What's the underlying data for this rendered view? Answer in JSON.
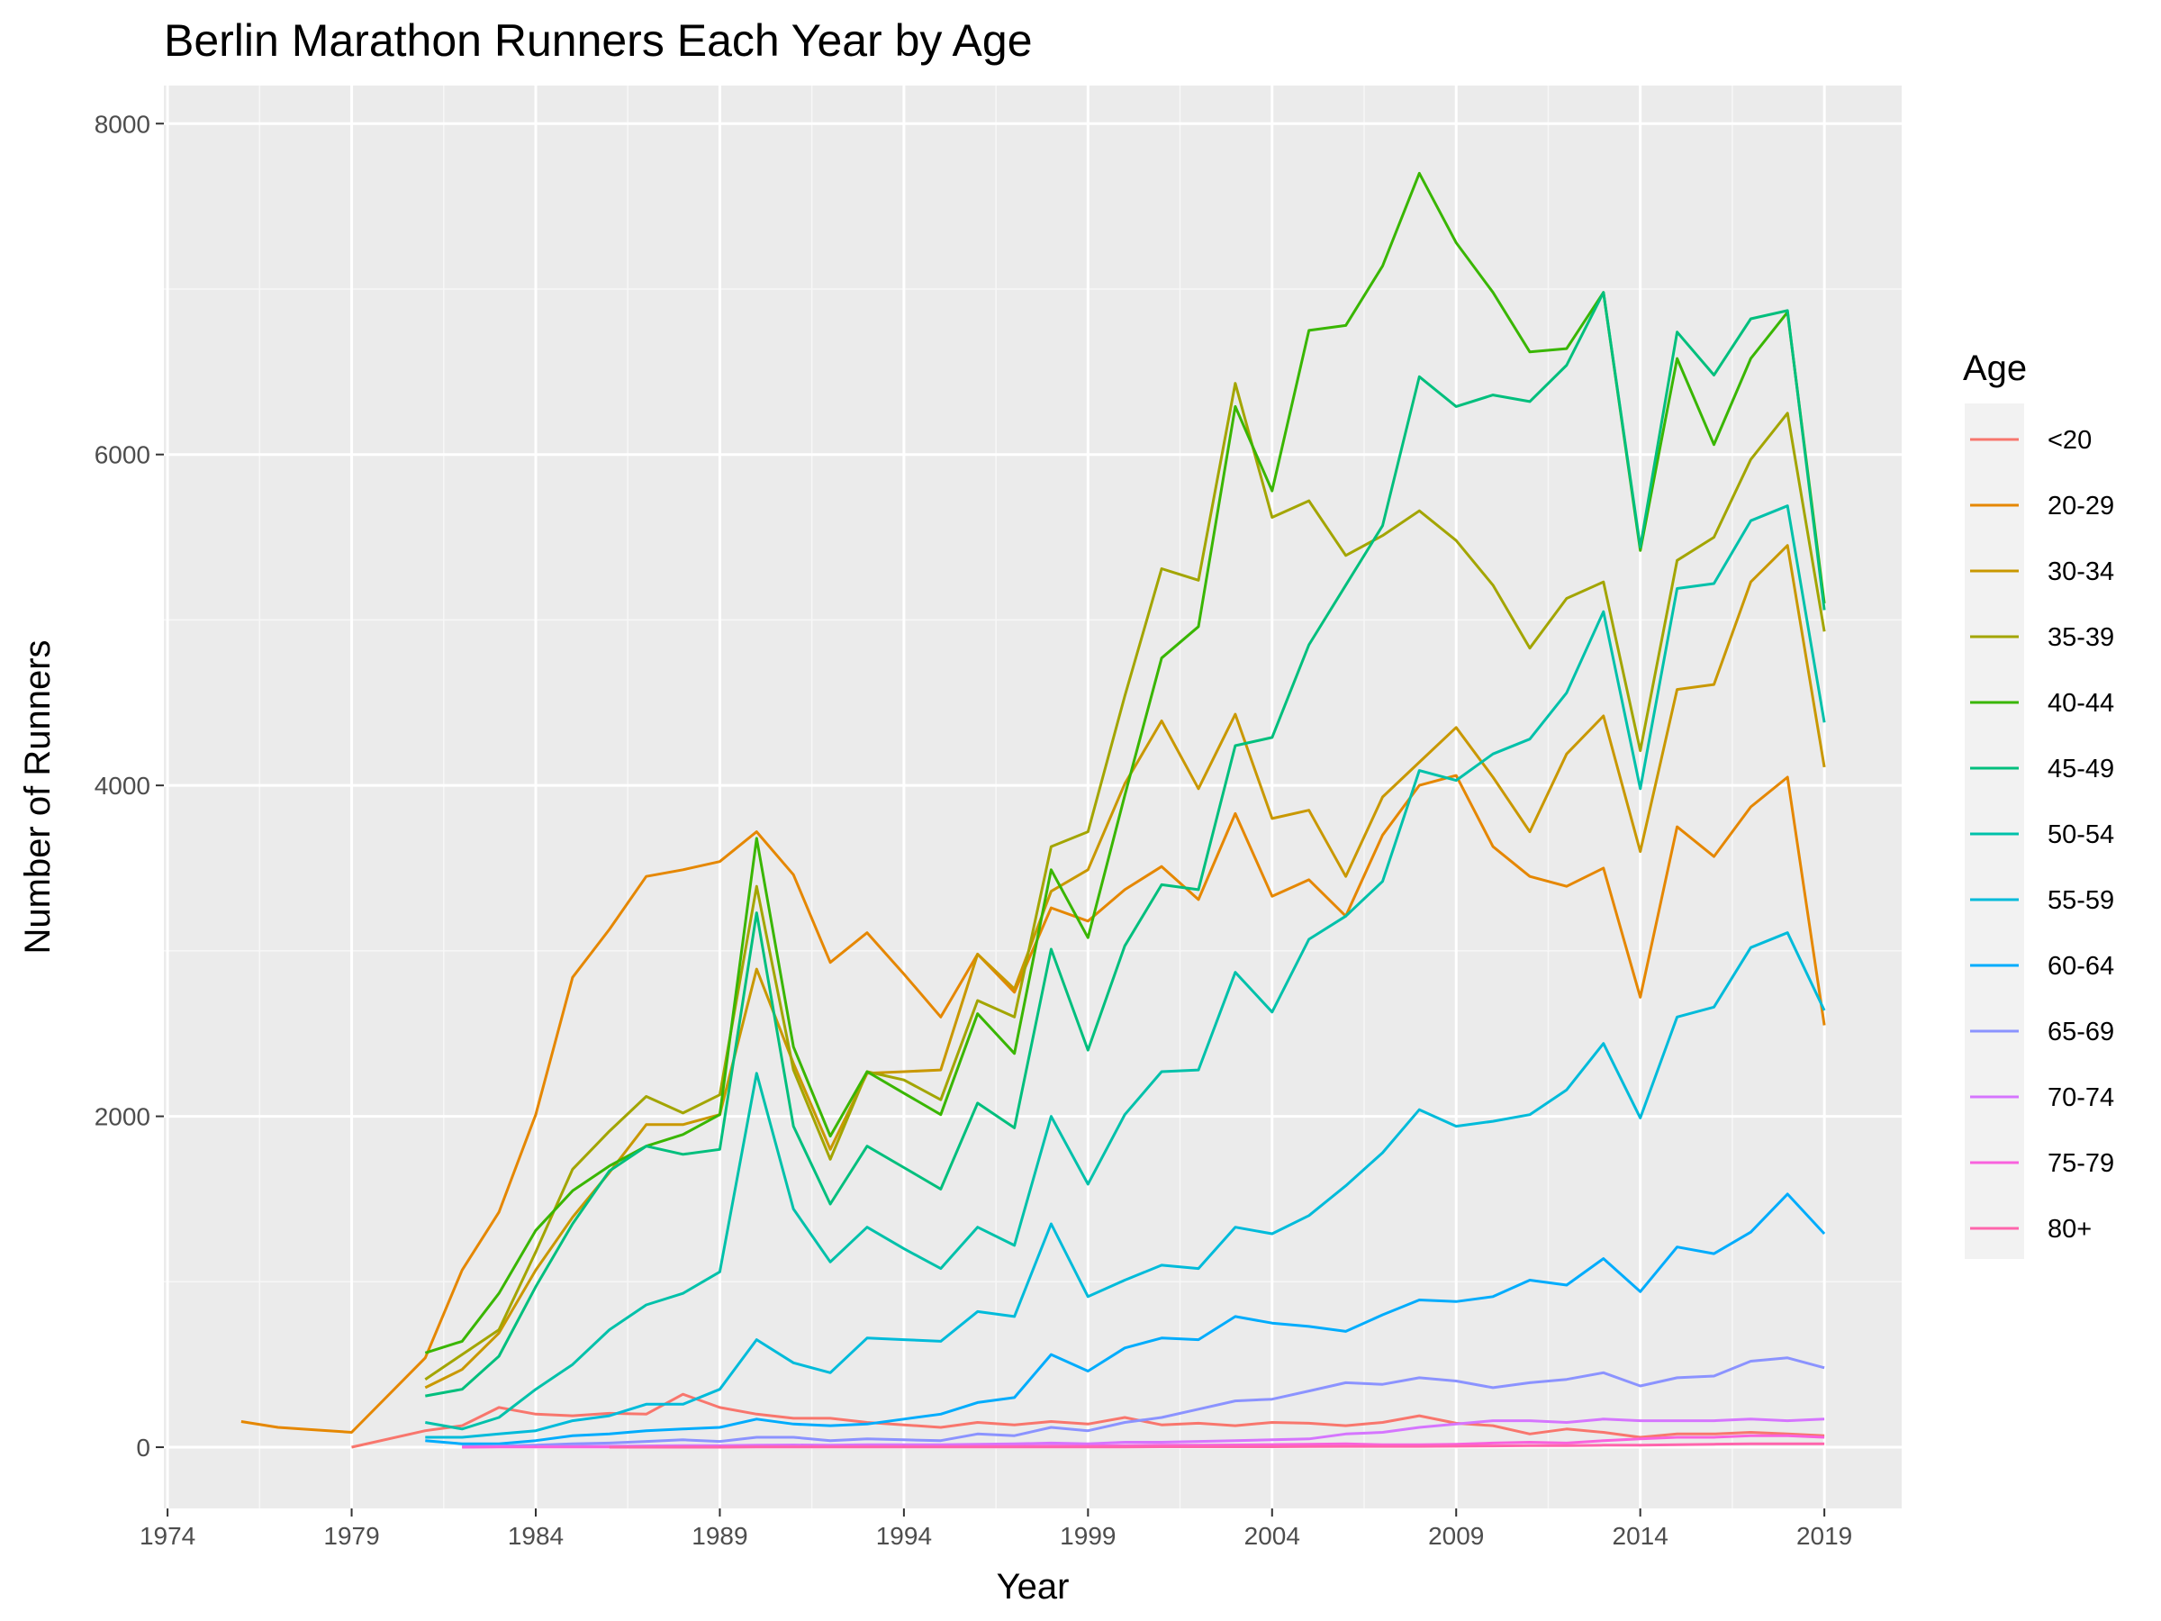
{
  "chart_data": {
    "type": "line",
    "title": "Berlin Marathon Runners Each Year by Age",
    "xlabel": "Year",
    "ylabel": "Number of Runners",
    "xlim": [
      1973.9,
      2021.1
    ],
    "ylim": [
      -370,
      8230
    ],
    "xticks": [
      1974,
      1979,
      1984,
      1989,
      1994,
      1999,
      2004,
      2009,
      2014,
      2019
    ],
    "yticks": [
      0,
      2000,
      4000,
      6000,
      8000
    ],
    "grid": true,
    "legend": {
      "title": "Age",
      "position": "right"
    },
    "series": [
      {
        "name": "<20",
        "color": "#F8766D",
        "x": [
          1979,
          1981,
          1982,
          1983,
          1984,
          1985,
          1986,
          1987,
          1988,
          1989,
          1990,
          1991,
          1992,
          1993,
          1994,
          1995,
          1996,
          1997,
          1998,
          1999,
          2000,
          2001,
          2002,
          2003,
          2004,
          2005,
          2006,
          2007,
          2008,
          2009,
          2010,
          2011,
          2012,
          2013,
          2014,
          2015,
          2016,
          2017,
          2018,
          2019
        ],
        "y": [
          0,
          100,
          130,
          240,
          200,
          190,
          205,
          200,
          320,
          240,
          200,
          175,
          175,
          150,
          135,
          120,
          150,
          135,
          155,
          140,
          180,
          135,
          145,
          130,
          150,
          145,
          130,
          150,
          190,
          145,
          130,
          80,
          110,
          90,
          60,
          80,
          80,
          90,
          80,
          70
        ]
      },
      {
        "name": "20-29",
        "color": "#E58700",
        "x": [
          1976,
          1977,
          1978,
          1979,
          1981,
          1982,
          1983,
          1984,
          1985,
          1986,
          1987,
          1988,
          1989,
          1990,
          1991,
          1992,
          1993,
          1994,
          1995,
          1996,
          1997,
          1998,
          1999,
          2000,
          2001,
          2002,
          2003,
          2004,
          2005,
          2006,
          2007,
          2008,
          2009,
          2010,
          2011,
          2012,
          2013,
          2014,
          2015,
          2016,
          2017,
          2018,
          2019
        ],
        "y": [
          155,
          120,
          105,
          90,
          540,
          1070,
          1420,
          2010,
          2840,
          3130,
          3450,
          3490,
          3540,
          3720,
          3460,
          2930,
          3110,
          2860,
          2600,
          2980,
          2750,
          3260,
          3180,
          3370,
          3510,
          3310,
          3830,
          3330,
          3430,
          3210,
          3700,
          4000,
          4060,
          3630,
          3450,
          3390,
          3500,
          2720,
          3750,
          3570,
          3870,
          4050,
          2550
        ]
      },
      {
        "name": "30-34",
        "color": "#C99800",
        "x": [
          1981,
          1982,
          1983,
          1984,
          1985,
          1986,
          1987,
          1988,
          1989,
          1990,
          1991,
          1992,
          1993,
          1994,
          1995,
          1996,
          1997,
          1998,
          1999,
          2000,
          2001,
          2002,
          2003,
          2004,
          2005,
          2006,
          2007,
          2008,
          2009,
          2010,
          2011,
          2012,
          2013,
          2014,
          2015,
          2016,
          2017,
          2018,
          2019
        ],
        "y": [
          360,
          470,
          690,
          1070,
          1390,
          1660,
          1950,
          1950,
          2010,
          2890,
          2320,
          1800,
          2260,
          2270,
          2280,
          2980,
          2770,
          3360,
          3490,
          4010,
          4390,
          3980,
          4430,
          3800,
          3850,
          3450,
          3930,
          4140,
          4350,
          4050,
          3720,
          4190,
          4420,
          3600,
          4580,
          4610,
          5230,
          5450,
          4110
        ]
      },
      {
        "name": "35-39",
        "color": "#A3A500",
        "x": [
          1981,
          1982,
          1983,
          1984,
          1985,
          1986,
          1987,
          1988,
          1989,
          1990,
          1991,
          1992,
          1993,
          1994,
          1995,
          1996,
          1997,
          1998,
          1999,
          2000,
          2001,
          2002,
          2003,
          2004,
          2005,
          2006,
          2007,
          2008,
          2009,
          2010,
          2011,
          2012,
          2013,
          2014,
          2015,
          2016,
          2017,
          2018,
          2019
        ],
        "y": [
          410,
          560,
          710,
          1180,
          1680,
          1910,
          2120,
          2020,
          2130,
          3390,
          2280,
          1740,
          2270,
          2220,
          2100,
          2700,
          2600,
          3630,
          3720,
          4540,
          5310,
          5240,
          6430,
          5620,
          5720,
          5390,
          5510,
          5660,
          5480,
          5210,
          4830,
          5130,
          5230,
          4210,
          5360,
          5500,
          5970,
          6250,
          4930
        ]
      },
      {
        "name": "40-44",
        "color": "#39B600",
        "x": [
          1981,
          1982,
          1983,
          1984,
          1985,
          1986,
          1987,
          1988,
          1989,
          1990,
          1991,
          1992,
          1993,
          1994,
          1995,
          1996,
          1997,
          1998,
          1999,
          2000,
          2001,
          2002,
          2003,
          2004,
          2005,
          2006,
          2007,
          2008,
          2009,
          2010,
          2011,
          2012,
          2013,
          2014,
          2015,
          2016,
          2017,
          2018,
          2019
        ],
        "y": [
          570,
          640,
          930,
          1310,
          1550,
          1700,
          1820,
          1890,
          2010,
          3680,
          2420,
          1880,
          2270,
          2140,
          2010,
          2620,
          2380,
          3490,
          3080,
          3940,
          4770,
          4960,
          6290,
          5780,
          6750,
          6780,
          7140,
          7700,
          7280,
          6980,
          6620,
          6640,
          6980,
          5420,
          6580,
          6060,
          6580,
          6860,
          5100
        ]
      },
      {
        "name": "45-49",
        "color": "#00BF7D",
        "x": [
          1981,
          1982,
          1983,
          1984,
          1985,
          1986,
          1987,
          1988,
          1989,
          1990,
          1991,
          1992,
          1993,
          1994,
          1995,
          1996,
          1997,
          1998,
          1999,
          2000,
          2001,
          2002,
          2003,
          2004,
          2005,
          2006,
          2007,
          2008,
          2009,
          2010,
          2011,
          2012,
          2013,
          2014,
          2015,
          2016,
          2017,
          2018,
          2019
        ],
        "y": [
          310,
          350,
          550,
          970,
          1350,
          1670,
          1820,
          1770,
          1800,
          3230,
          1940,
          1470,
          1820,
          1690,
          1560,
          2080,
          1930,
          3010,
          2400,
          3030,
          3400,
          3370,
          4240,
          4290,
          4850,
          5210,
          5570,
          6470,
          6290,
          6360,
          6320,
          6540,
          6980,
          5440,
          6740,
          6480,
          6820,
          6870,
          5060
        ]
      },
      {
        "name": "50-54",
        "color": "#00C1AA",
        "x": [
          1981,
          1982,
          1983,
          1984,
          1985,
          1986,
          1987,
          1988,
          1989,
          1990,
          1991,
          1992,
          1993,
          1994,
          1995,
          1996,
          1997,
          1998,
          1999,
          2000,
          2001,
          2002,
          2003,
          2004,
          2005,
          2006,
          2007,
          2008,
          2009,
          2010,
          2011,
          2012,
          2013,
          2014,
          2015,
          2016,
          2017,
          2018,
          2019
        ],
        "y": [
          150,
          110,
          180,
          350,
          500,
          710,
          860,
          930,
          1060,
          2260,
          1440,
          1120,
          1330,
          1200,
          1080,
          1330,
          1220,
          2000,
          1590,
          2010,
          2270,
          2280,
          2870,
          2630,
          3070,
          3210,
          3420,
          4090,
          4030,
          4190,
          4280,
          4560,
          5050,
          3980,
          5190,
          5220,
          5600,
          5690,
          4380
        ]
      },
      {
        "name": "55-59",
        "color": "#00BBDA",
        "x": [
          1981,
          1982,
          1983,
          1984,
          1985,
          1986,
          1987,
          1988,
          1989,
          1990,
          1991,
          1992,
          1993,
          1994,
          1995,
          1996,
          1997,
          1998,
          1999,
          2000,
          2001,
          2002,
          2003,
          2004,
          2005,
          2006,
          2007,
          2008,
          2009,
          2010,
          2011,
          2012,
          2013,
          2014,
          2015,
          2016,
          2017,
          2018,
          2019
        ],
        "y": [
          60,
          60,
          80,
          100,
          160,
          190,
          260,
          260,
          350,
          650,
          510,
          450,
          660,
          650,
          640,
          820,
          790,
          1350,
          910,
          1010,
          1100,
          1080,
          1330,
          1290,
          1400,
          1580,
          1780,
          2040,
          1940,
          1970,
          2010,
          2160,
          2440,
          1990,
          2600,
          2660,
          3020,
          3110,
          2640
        ]
      },
      {
        "name": "60-64",
        "color": "#00ACFC",
        "x": [
          1981,
          1982,
          1983,
          1984,
          1985,
          1986,
          1987,
          1988,
          1989,
          1990,
          1991,
          1992,
          1993,
          1994,
          1995,
          1996,
          1997,
          1998,
          1999,
          2000,
          2001,
          2002,
          2003,
          2004,
          2005,
          2006,
          2007,
          2008,
          2009,
          2010,
          2011,
          2012,
          2013,
          2014,
          2015,
          2016,
          2017,
          2018,
          2019
        ],
        "y": [
          40,
          20,
          20,
          40,
          70,
          80,
          100,
          110,
          120,
          170,
          140,
          130,
          140,
          170,
          200,
          270,
          300,
          560,
          460,
          600,
          660,
          650,
          790,
          750,
          730,
          700,
          800,
          890,
          880,
          910,
          1010,
          980,
          1140,
          940,
          1210,
          1170,
          1300,
          1530,
          1290
        ]
      },
      {
        "name": "65-69",
        "color": "#8B93FF",
        "x": [
          1982,
          1983,
          1984,
          1985,
          1986,
          1987,
          1988,
          1989,
          1990,
          1991,
          1992,
          1993,
          1994,
          1995,
          1996,
          1997,
          1998,
          1999,
          2000,
          2001,
          2002,
          2003,
          2004,
          2005,
          2006,
          2007,
          2008,
          2009,
          2010,
          2011,
          2012,
          2013,
          2014,
          2015,
          2016,
          2017,
          2018,
          2019
        ],
        "y": [
          5,
          8,
          12,
          20,
          25,
          35,
          45,
          35,
          60,
          60,
          40,
          50,
          45,
          40,
          80,
          70,
          120,
          100,
          150,
          180,
          230,
          280,
          290,
          340,
          390,
          380,
          420,
          400,
          360,
          390,
          410,
          450,
          370,
          420,
          430,
          520,
          540,
          480
        ]
      },
      {
        "name": "70-74",
        "color": "#D575FE",
        "x": [
          1982,
          1983,
          1984,
          1985,
          1986,
          1987,
          1988,
          1989,
          1990,
          1991,
          1992,
          1993,
          1994,
          1995,
          1996,
          1997,
          1998,
          1999,
          2000,
          2001,
          2002,
          2003,
          2004,
          2005,
          2006,
          2007,
          2008,
          2009,
          2010,
          2011,
          2012,
          2013,
          2014,
          2015,
          2016,
          2017,
          2018,
          2019
        ],
        "y": [
          2,
          3,
          4,
          5,
          6,
          8,
          10,
          10,
          12,
          14,
          12,
          15,
          15,
          15,
          18,
          20,
          25,
          20,
          30,
          30,
          35,
          40,
          45,
          50,
          80,
          90,
          120,
          140,
          160,
          160,
          150,
          170,
          160,
          160,
          160,
          170,
          160,
          170
        ]
      },
      {
        "name": "75-79",
        "color": "#F962DD",
        "x": [
          1982,
          1983,
          1984,
          1985,
          1986,
          1987,
          1988,
          1989,
          1990,
          1991,
          1992,
          1993,
          1994,
          1995,
          1996,
          1997,
          1998,
          1999,
          2000,
          2001,
          2002,
          2003,
          2004,
          2005,
          2006,
          2007,
          2008,
          2009,
          2010,
          2011,
          2012,
          2013,
          2014,
          2015,
          2016,
          2017,
          2018,
          2019
        ],
        "y": [
          0,
          1,
          1,
          2,
          2,
          2,
          3,
          3,
          4,
          4,
          4,
          5,
          5,
          5,
          6,
          6,
          8,
          8,
          10,
          12,
          12,
          14,
          16,
          18,
          20,
          15,
          15,
          18,
          25,
          30,
          25,
          40,
          50,
          60,
          60,
          70,
          70,
          60
        ]
      },
      {
        "name": "80+",
        "color": "#FF65AC",
        "x": [
          1986,
          1987,
          1988,
          1989,
          1990,
          1991,
          1992,
          1993,
          1994,
          1995,
          1996,
          1997,
          1998,
          1999,
          2000,
          2001,
          2002,
          2003,
          2004,
          2005,
          2006,
          2007,
          2008,
          2009,
          2010,
          2011,
          2012,
          2013,
          2014,
          2015,
          2016,
          2017,
          2018,
          2019
        ],
        "y": [
          0,
          0,
          0,
          0,
          1,
          1,
          1,
          1,
          1,
          1,
          1,
          2,
          2,
          2,
          2,
          3,
          3,
          3,
          3,
          4,
          5,
          5,
          5,
          6,
          8,
          10,
          10,
          12,
          12,
          15,
          18,
          20,
          20,
          20
        ]
      }
    ]
  }
}
